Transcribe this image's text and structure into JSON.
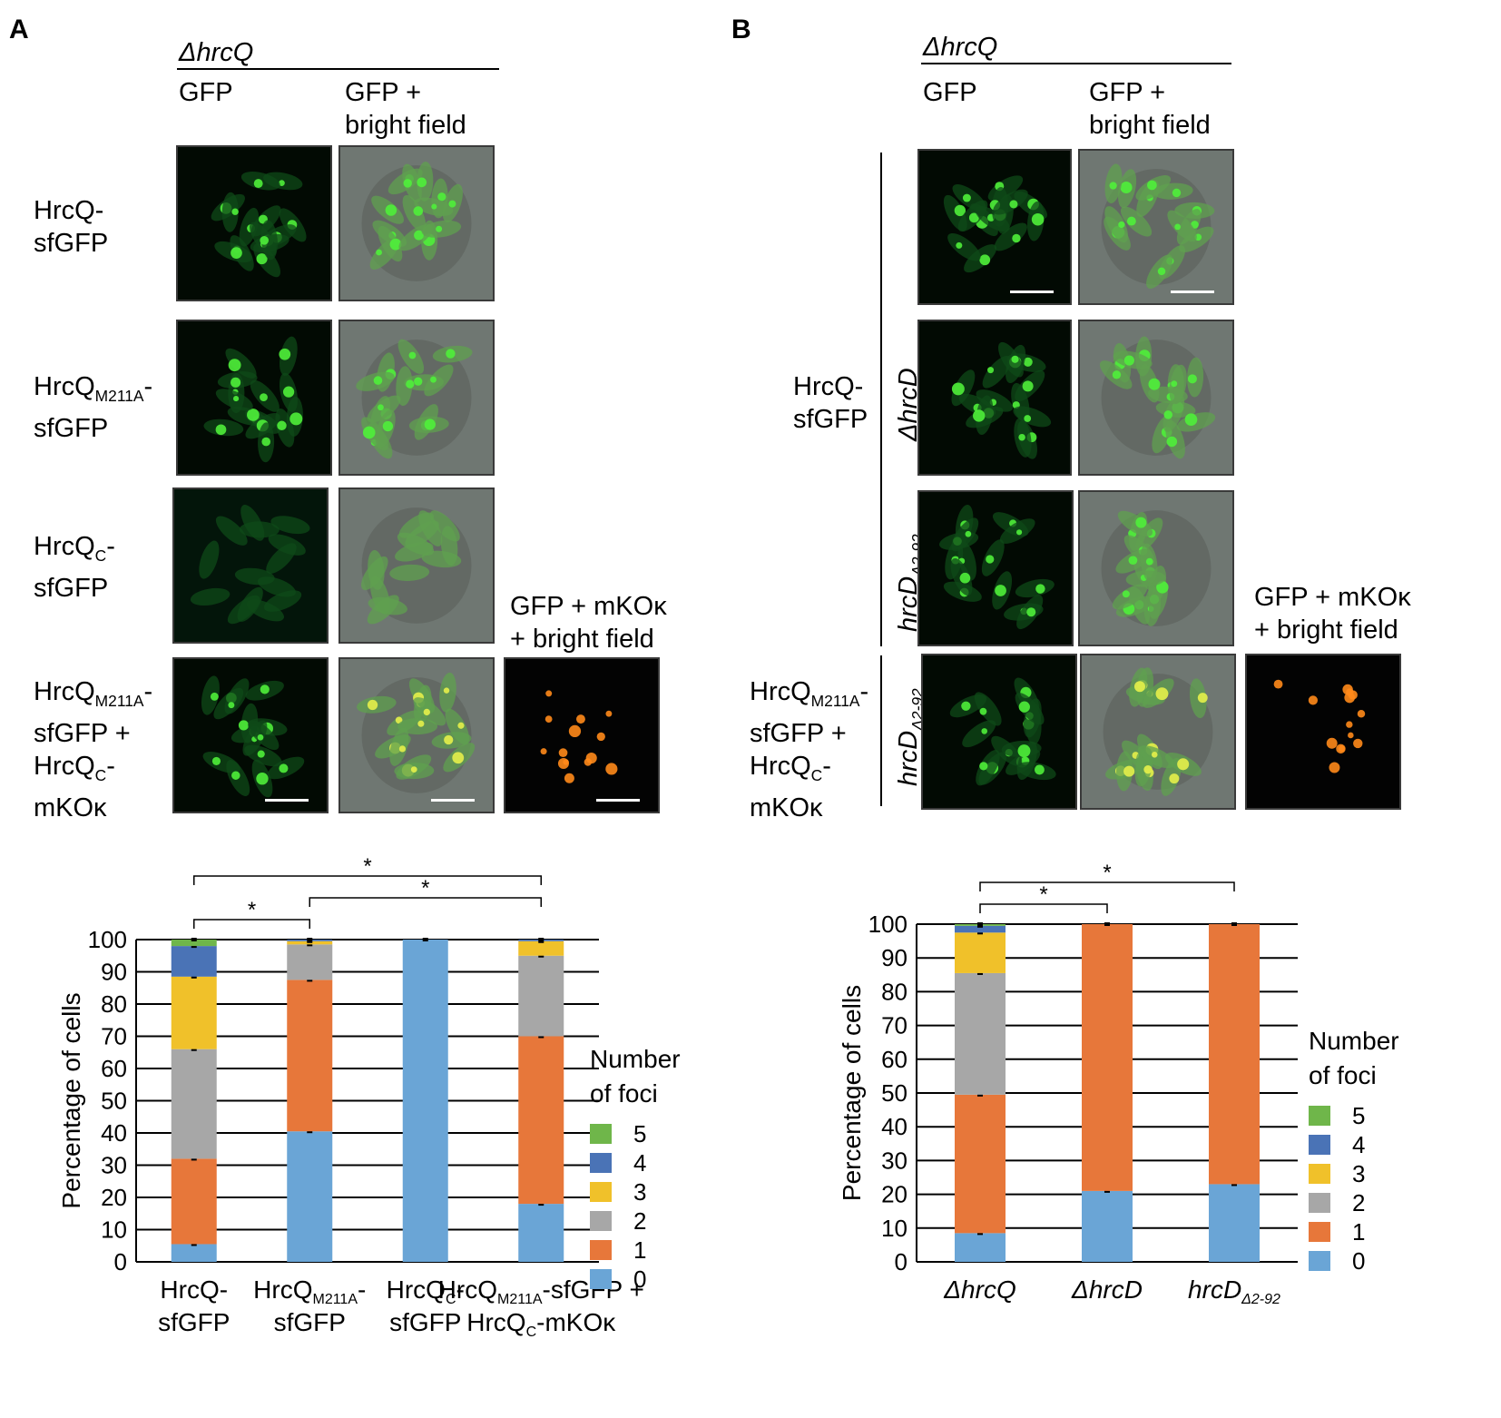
{
  "panel_a": {
    "letter": "A",
    "strain_header": "ΔhrcQ",
    "col_gfp": "GFP",
    "col_bf_1": "GFP +",
    "col_bf_2": "bright field",
    "col_mko_1": "GFP + mKOκ",
    "col_mko_2": "+ bright field",
    "rows": [
      {
        "line1": "HrcQ-",
        "line2": "sfGFP"
      },
      {
        "line1": "HrcQ",
        "sub": "M211A",
        "line1_tail": "-",
        "line2": "sfGFP"
      },
      {
        "line1": "HrcQ",
        "sub": "C",
        "line1_tail": "-",
        "line2": "sfGFP"
      },
      {
        "line1": "HrcQ",
        "sub": "M211A",
        "line1_tail": "-",
        "line2": "sfGFP +",
        "line3": "HrcQ",
        "sub3": "C",
        "line3_tail": "-",
        "line4": "mKOκ"
      }
    ]
  },
  "panel_b": {
    "letter": "B",
    "strain_header": "ΔhrcQ",
    "col_gfp": "GFP",
    "col_bf_1": "GFP +",
    "col_bf_2": "bright field",
    "col_mko_1": "GFP + mKOκ",
    "col_mko_2": "+ bright field",
    "group_label_1": "HrcQ-",
    "group_label_2": "sfGFP",
    "vlabel_dhrcd": "ΔhrcD",
    "vlabel_hrcd": "hrcD",
    "vlabel_sub": "Δ2-92",
    "row4_line1": "HrcQ",
    "row4_sub1": "M211A",
    "row4_tail1": "-",
    "row4_line2": "sfGFP +",
    "row4_line3": "HrcQ",
    "row4_sub3": "C",
    "row4_tail3": "-",
    "row4_line4": "mKOκ"
  },
  "colors": {
    "0": "#6aa5d6",
    "1": "#e7773a",
    "2": "#a7a7a7",
    "3": "#f0c12a",
    "4": "#4a73b6",
    "5": "#6fb64a",
    "gfp_spot": "#4ff03a",
    "mko_spot": "#ff8a1a"
  },
  "chart_data": [
    {
      "type": "bar",
      "stacked": true,
      "ylabel": "Percentage of cells",
      "ylim": [
        0,
        100
      ],
      "yticks": [
        0,
        10,
        20,
        30,
        40,
        50,
        60,
        70,
        80,
        90,
        100
      ],
      "grid": true,
      "legend_title_1": "Number",
      "legend_title_2": "of foci",
      "legend_position": "right",
      "legend_entries": [
        "5",
        "4",
        "3",
        "2",
        "1",
        "0"
      ],
      "categories": [
        {
          "line1": "HrcQ-",
          "line2": "sfGFP"
        },
        {
          "line1": "HrcQ",
          "sub": "M211A",
          "tail": "-",
          "line2": "sfGFP"
        },
        {
          "line1": "HrcQ",
          "sub": "C",
          "tail": "-",
          "line2": "sfGFP"
        },
        {
          "line1": "HrcQ",
          "sub": "M211A",
          "tail": "-sfGFP +",
          "line2": "HrcQ",
          "sub2": "C",
          "tail2": "-mKOκ"
        }
      ],
      "series": [
        {
          "name": "0",
          "values": [
            5.5,
            40.5,
            100,
            18
          ]
        },
        {
          "name": "1",
          "values": [
            26.5,
            47,
            0,
            52
          ]
        },
        {
          "name": "2",
          "values": [
            34,
            11,
            0,
            25
          ]
        },
        {
          "name": "3",
          "values": [
            22.5,
            1,
            0,
            4.5
          ]
        },
        {
          "name": "4",
          "values": [
            9.5,
            0.5,
            0,
            0.5
          ]
        },
        {
          "name": "5",
          "values": [
            2,
            0,
            0,
            0
          ]
        }
      ],
      "significance": [
        {
          "from": 0,
          "to": 1,
          "label": "*"
        },
        {
          "from": 1,
          "to": 3,
          "label": "*"
        },
        {
          "from": 0,
          "to": 3,
          "label": "*"
        }
      ]
    },
    {
      "type": "bar",
      "stacked": true,
      "ylabel": "Percentage of cells",
      "ylim": [
        0,
        100
      ],
      "yticks": [
        0,
        10,
        20,
        30,
        40,
        50,
        60,
        70,
        80,
        90,
        100
      ],
      "grid": true,
      "legend_title_1": "Number",
      "legend_title_2": "of foci",
      "legend_position": "right",
      "legend_entries": [
        "5",
        "4",
        "3",
        "2",
        "1",
        "0"
      ],
      "categories": [
        {
          "line1": "ΔhrcQ"
        },
        {
          "line1": "ΔhrcD"
        },
        {
          "line1": "hrcD",
          "sub": "Δ2-92"
        }
      ],
      "series": [
        {
          "name": "0",
          "values": [
            8.5,
            21,
            23
          ]
        },
        {
          "name": "1",
          "values": [
            41,
            79,
            77
          ]
        },
        {
          "name": "2",
          "values": [
            36,
            0,
            0
          ]
        },
        {
          "name": "3",
          "values": [
            12,
            0,
            0
          ]
        },
        {
          "name": "4",
          "values": [
            2,
            0,
            0
          ]
        },
        {
          "name": "5",
          "values": [
            0.5,
            0,
            0
          ]
        }
      ],
      "significance": [
        {
          "from": 0,
          "to": 1,
          "label": "*"
        },
        {
          "from": 0,
          "to": 2,
          "label": "*"
        }
      ]
    }
  ]
}
